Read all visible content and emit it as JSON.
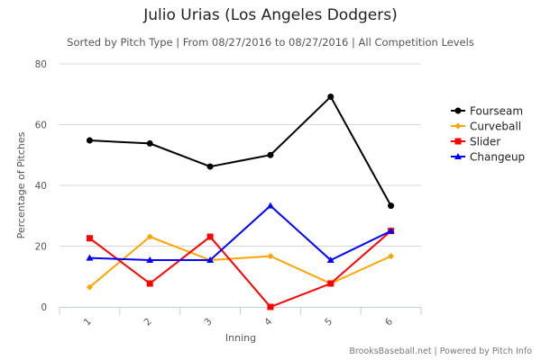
{
  "chart_data": {
    "type": "line",
    "title": "Julio Urias (Los Angeles Dodgers)",
    "subtitle": "Sorted by Pitch Type | From 08/27/2016 to 08/27/2016 | All Competition Levels",
    "xlabel": "Inning",
    "ylabel": "Percentage of Pitches",
    "categories": [
      "1",
      "2",
      "3",
      "4",
      "5",
      "6"
    ],
    "ylim": [
      0,
      80
    ],
    "yticks": [
      "0",
      "20",
      "40",
      "60",
      "80"
    ],
    "grid": true,
    "legend_position": "right",
    "series": [
      {
        "name": "Fourseam",
        "color": "#000000",
        "marker": "circle",
        "values": [
          54.8,
          53.8,
          46.2,
          50.0,
          69.2,
          33.3
        ]
      },
      {
        "name": "Curveball",
        "color": "#FFA500",
        "marker": "diamond",
        "values": [
          6.5,
          23.1,
          15.4,
          16.7,
          7.7,
          16.7
        ]
      },
      {
        "name": "Slider",
        "color": "#FF0000",
        "marker": "square",
        "values": [
          22.6,
          7.7,
          23.1,
          0.0,
          7.7,
          25.0
        ]
      },
      {
        "name": "Changeup",
        "color": "#0000FF",
        "marker": "triangle",
        "values": [
          16.1,
          15.4,
          15.4,
          33.3,
          15.4,
          25.0
        ]
      }
    ],
    "credits": "BrooksBaseball.net | Powered by Pitch Info"
  }
}
